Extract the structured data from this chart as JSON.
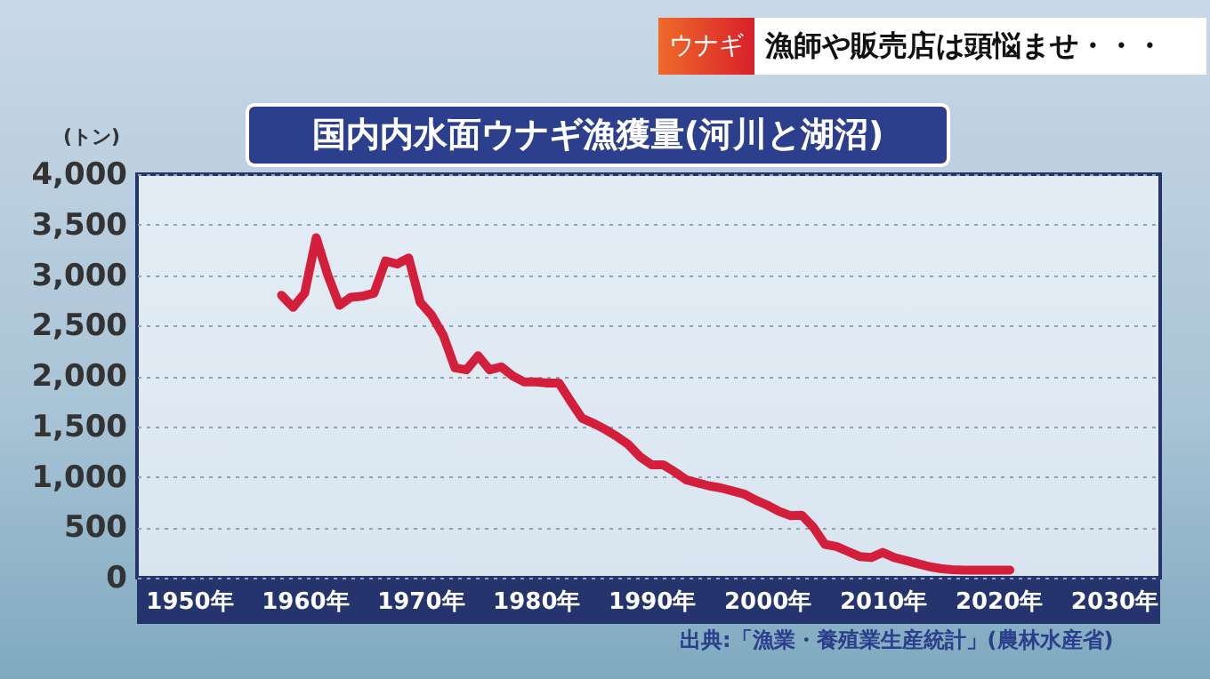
{
  "chart_data": {
    "type": "line",
    "title": "国内内水面ウナギ漁獲量(河川と湖沼)",
    "ylabel": "(トン)",
    "annotations": [
      "ウナギ",
      "漁師や販売店は頭悩ませ・・・",
      "出典:「漁業・養殖業生産統計」(農林水産省)"
    ],
    "x": [
      1958,
      1959,
      1960,
      1961,
      1962,
      1963,
      1964,
      1965,
      1966,
      1967,
      1968,
      1969,
      1970,
      1971,
      1972,
      1973,
      1974,
      1975,
      1976,
      1977,
      1978,
      1979,
      1980,
      1981,
      1982,
      1983,
      1984,
      1985,
      1986,
      1987,
      1988,
      1989,
      1990,
      1991,
      1992,
      1993,
      1994,
      1995,
      1996,
      1997,
      1998,
      1999,
      2000,
      2001,
      2002,
      2003,
      2004,
      2005,
      2006,
      2007,
      2008,
      2009,
      2010,
      2011,
      2012,
      2013,
      2014,
      2015,
      2016,
      2017,
      2018,
      2019,
      2020,
      2021
    ],
    "series": [
      {
        "color": "#d41f3c",
        "values": [
          2800,
          2680,
          2820,
          3370,
          3000,
          2700,
          2780,
          2790,
          2820,
          3140,
          3110,
          3170,
          2730,
          2600,
          2400,
          2080,
          2060,
          2200,
          2060,
          2090,
          2000,
          1940,
          1940,
          1930,
          1930,
          1750,
          1580,
          1530,
          1470,
          1400,
          1320,
          1200,
          1120,
          1120,
          1050,
          970,
          940,
          910,
          890,
          860,
          830,
          770,
          720,
          660,
          615,
          620,
          500,
          330,
          310,
          260,
          210,
          200,
          250,
          200,
          170,
          140,
          110,
          90,
          80,
          75,
          75,
          75,
          75,
          75
        ]
      }
    ],
    "xlim": [
      1945.5,
      2034
    ],
    "xticks": [
      {
        "value": 1950,
        "label": "1950年"
      },
      {
        "value": 1960,
        "label": "1960年"
      },
      {
        "value": 1970,
        "label": "1970年"
      },
      {
        "value": 1980,
        "label": "1980年"
      },
      {
        "value": 1990,
        "label": "1990年"
      },
      {
        "value": 2000,
        "label": "2000年"
      },
      {
        "value": 2010,
        "label": "2010年"
      },
      {
        "value": 2020,
        "label": "2020年"
      },
      {
        "value": 2030,
        "label": "2030年"
      }
    ],
    "ylim": [
      0,
      4000
    ],
    "yticks": [
      0,
      500,
      {
        "value": 1000,
        "label": "1,000"
      },
      {
        "value": 1500,
        "label": "1,500"
      },
      {
        "value": 2000,
        "label": "2,000"
      },
      {
        "value": 2500,
        "label": "2,500"
      },
      {
        "value": 3000,
        "label": "3,000"
      },
      {
        "value": 3500,
        "label": "3,500"
      },
      {
        "value": 4000,
        "label": "4,000"
      }
    ],
    "grid": "y",
    "line_style": "solid",
    "marker": "none"
  }
}
